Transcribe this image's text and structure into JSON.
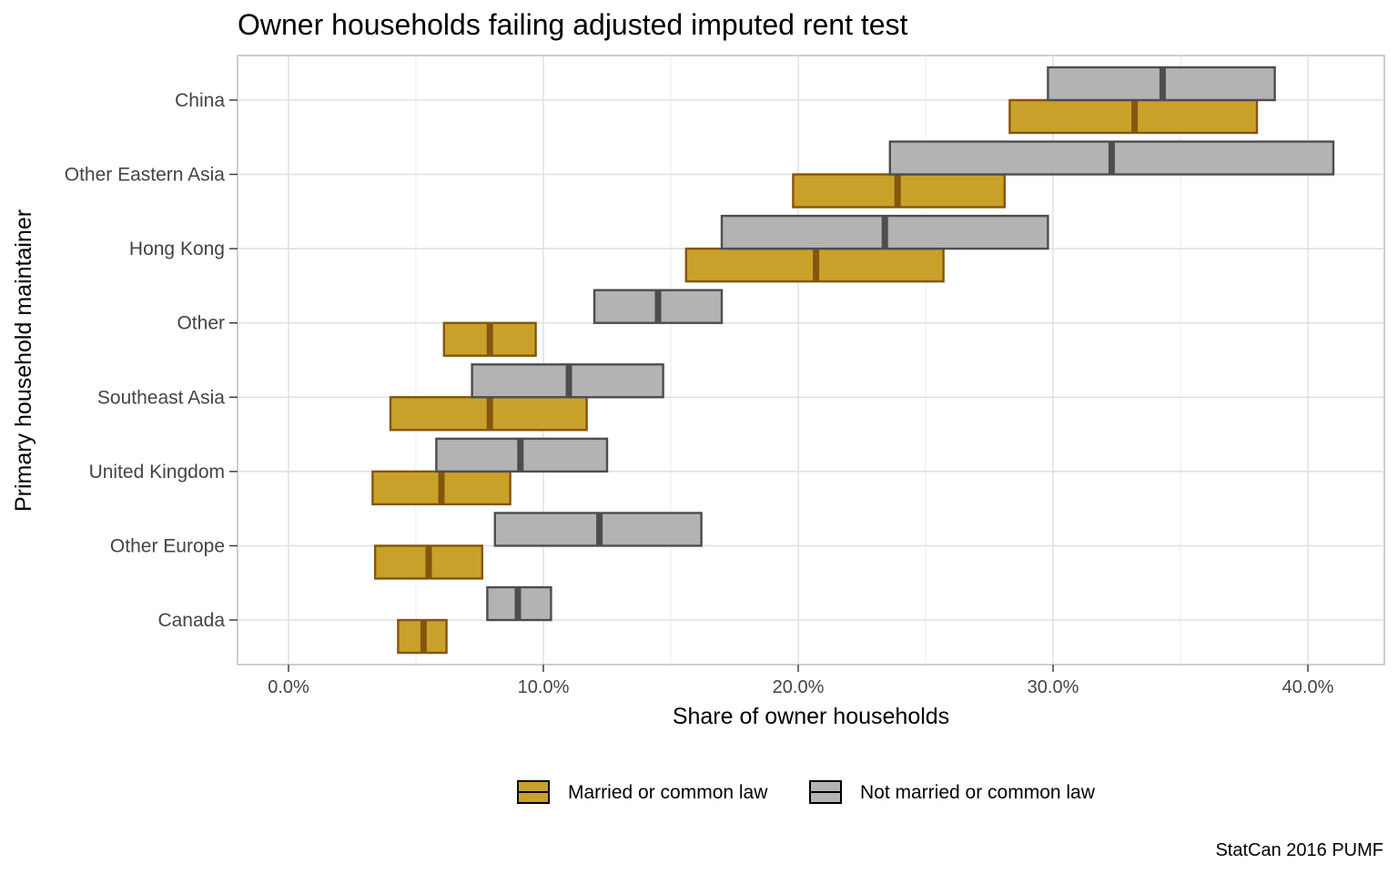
{
  "chart_data": {
    "type": "bar",
    "subtype": "floating-range-with-median",
    "title": "Owner households failing adjusted imputed rent test",
    "xlabel": "Share of owner households",
    "ylabel": "Primary household maintainer",
    "caption": "StatCan 2016 PUMF",
    "xlim": [
      -0.02,
      0.43
    ],
    "xticks": [
      0.0,
      0.1,
      0.2,
      0.3,
      0.4
    ],
    "xtick_labels": [
      "0.0%",
      "10.0%",
      "20.0%",
      "30.0%",
      "40.0%"
    ],
    "grid": true,
    "legend_position": "bottom",
    "categories": [
      "China",
      "Other Eastern Asia",
      "Hong Kong",
      "Other",
      "Southeast Asia",
      "United Kingdom",
      "Other Europe",
      "Canada"
    ],
    "series": [
      {
        "name": "Married or common law",
        "fill": "#c9a12a",
        "stroke": "#85550e",
        "ranges": [
          {
            "low": 0.283,
            "mid": 0.332,
            "high": 0.38
          },
          {
            "low": 0.198,
            "mid": 0.239,
            "high": 0.281
          },
          {
            "low": 0.156,
            "mid": 0.207,
            "high": 0.257
          },
          {
            "low": 0.061,
            "mid": 0.079,
            "high": 0.097
          },
          {
            "low": 0.04,
            "mid": 0.079,
            "high": 0.117
          },
          {
            "low": 0.033,
            "mid": 0.06,
            "high": 0.087
          },
          {
            "low": 0.034,
            "mid": 0.055,
            "high": 0.076
          },
          {
            "low": 0.043,
            "mid": 0.053,
            "high": 0.062
          }
        ]
      },
      {
        "name": "Not married or common law",
        "fill": "#b3b3b3",
        "stroke": "#4d4d4d",
        "ranges": [
          {
            "low": 0.298,
            "mid": 0.343,
            "high": 0.387
          },
          {
            "low": 0.236,
            "mid": 0.323,
            "high": 0.41
          },
          {
            "low": 0.17,
            "mid": 0.234,
            "high": 0.298
          },
          {
            "low": 0.12,
            "mid": 0.145,
            "high": 0.17
          },
          {
            "low": 0.072,
            "mid": 0.11,
            "high": 0.147
          },
          {
            "low": 0.058,
            "mid": 0.091,
            "high": 0.125
          },
          {
            "low": 0.081,
            "mid": 0.122,
            "high": 0.162
          },
          {
            "low": 0.078,
            "mid": 0.09,
            "high": 0.103
          }
        ]
      }
    ]
  }
}
